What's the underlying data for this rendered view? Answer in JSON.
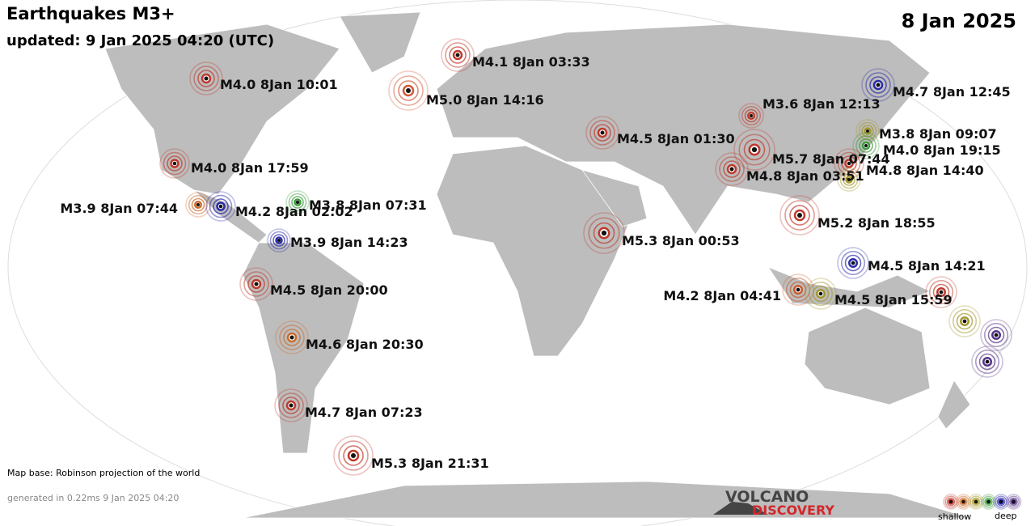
{
  "header": {
    "title": "Earthquakes M3+",
    "updated": "updated:  9 Jan 2025 04:20 (UTC)",
    "date": "8 Jan 2025"
  },
  "quakes": [
    {
      "label": "M4.0  8Jan 10:01",
      "color": "#c0392b"
    },
    {
      "label": "M5.0  8Jan 14:16",
      "color": "#d35a3a"
    },
    {
      "label": "M4.1  8Jan 03:33",
      "color": "#c0392b"
    },
    {
      "label": "M4.5  8Jan 01:30",
      "color": "#c0392b"
    },
    {
      "label": "M3.6  8Jan 12:13",
      "color": "#c0392b"
    },
    {
      "label": "M5.7  8Jan 07:44",
      "color": "#c0392b"
    },
    {
      "label": "M4.8  8Jan 03:51",
      "color": "#c0392b"
    },
    {
      "label": "M4.7  8Jan 12:45",
      "color": "#2a2aaa"
    },
    {
      "label": "M3.8  8Jan 09:07",
      "color": "#a3962a"
    },
    {
      "label": "M4.0  8Jan 19:15",
      "color": "#3c9a3c"
    },
    {
      "label": "M4.8  8Jan 14:40",
      "color": "#c0392b"
    },
    {
      "label": "M4.0  8Jan 17:59",
      "color": "#c0392b"
    },
    {
      "label": "M3.9  8Jan 07:44",
      "color": "#cc6a2a"
    },
    {
      "label": "M4.2  8Jan 02:02",
      "color": "#2a2aaa"
    },
    {
      "label": "M3.8  8Jan 07:31",
      "color": "#3c9a3c"
    },
    {
      "label": "M3.9  8Jan 14:23",
      "color": "#2a2aaa"
    },
    {
      "label": "M4.5  8Jan 20:00",
      "color": "#c0392b"
    },
    {
      "label": "M4.6  8Jan 20:30",
      "color": "#cc6a2a"
    },
    {
      "label": "M4.7  8Jan 07:23",
      "color": "#c0392b"
    },
    {
      "label": "M5.3  8Jan 21:31",
      "color": "#c0392b"
    },
    {
      "label": "M5.3  8Jan 00:53",
      "color": "#c0392b"
    },
    {
      "label": "M5.2  8Jan 18:55",
      "color": "#c0392b"
    },
    {
      "label": "M4.5  8Jan 14:21",
      "color": "#2a2aaa"
    },
    {
      "label": "M4.2  8Jan 04:41",
      "color": "#cc5a2a"
    },
    {
      "label": "M4.5  8Jan 15:59",
      "color": "#a3962a"
    },
    {
      "label": null,
      "color": "#c0392b"
    },
    {
      "label": null,
      "color": "#a3962a"
    },
    {
      "label": null,
      "color": "#553388"
    },
    {
      "label": null,
      "color": "#553388"
    },
    {
      "label": null,
      "color": "#a3962a"
    }
  ],
  "footer": {
    "map_base": "Map base: Robinson projection of the world",
    "generated": "generated in 0.22ms  9 Jan 2025 04:20"
  },
  "logo": {
    "line1": "VOLCANO",
    "line2": "DISCOVERY"
  },
  "legend": {
    "shallow": "shallow",
    "deep": "deep",
    "colors": [
      "#c0392b",
      "#cc6a2a",
      "#a3962a",
      "#3c9a3c",
      "#2a2aaa",
      "#553388"
    ]
  }
}
